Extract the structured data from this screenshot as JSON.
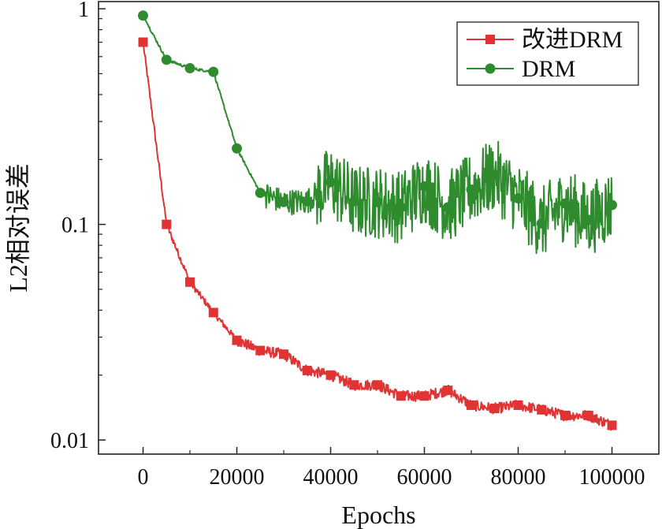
{
  "chart_data": {
    "type": "line",
    "title": "",
    "xlabel": "Epochs",
    "ylabel": "L2相对误差",
    "xlim": [
      -9500,
      110000
    ],
    "ylim": [
      0.0086,
      1.08
    ],
    "yscale": "log",
    "x_ticks": [
      0,
      20000,
      40000,
      60000,
      80000,
      100000
    ],
    "x_tick_labels": [
      "0",
      "20000",
      "40000",
      "60000",
      "80000",
      "100000"
    ],
    "y_ticks": [
      0.01,
      0.1,
      1
    ],
    "y_tick_labels": [
      "0.01",
      "0.1",
      "1"
    ],
    "grid": false,
    "legend_position": "top-right",
    "series": [
      {
        "name": "改进DRM",
        "color": "#e03333",
        "marker": "square",
        "x": [
          0,
          5000,
          10000,
          15000,
          20000,
          25000,
          30000,
          35000,
          40000,
          45000,
          50000,
          55000,
          60000,
          65000,
          70000,
          75000,
          80000,
          85000,
          90000,
          95000,
          100000
        ],
        "values": [
          0.7,
          0.1,
          0.054,
          0.039,
          0.029,
          0.026,
          0.025,
          0.021,
          0.02,
          0.018,
          0.018,
          0.016,
          0.016,
          0.017,
          0.0145,
          0.014,
          0.0145,
          0.0138,
          0.013,
          0.013,
          0.0117
        ]
      },
      {
        "name": "DRM",
        "color": "#2e8b2e",
        "marker": "circle",
        "x": [
          0,
          5000,
          10000,
          15000,
          20000,
          25000,
          30000,
          35000,
          40000,
          45000,
          50000,
          55000,
          60000,
          65000,
          70000,
          75000,
          80000,
          85000,
          90000,
          95000,
          100000
        ],
        "values": [
          0.93,
          0.58,
          0.53,
          0.51,
          0.225,
          0.14,
          0.127,
          0.128,
          0.157,
          0.128,
          0.127,
          0.12,
          0.15,
          0.12,
          0.145,
          0.17,
          0.132,
          0.101,
          0.125,
          0.105,
          0.123
        ]
      }
    ]
  }
}
